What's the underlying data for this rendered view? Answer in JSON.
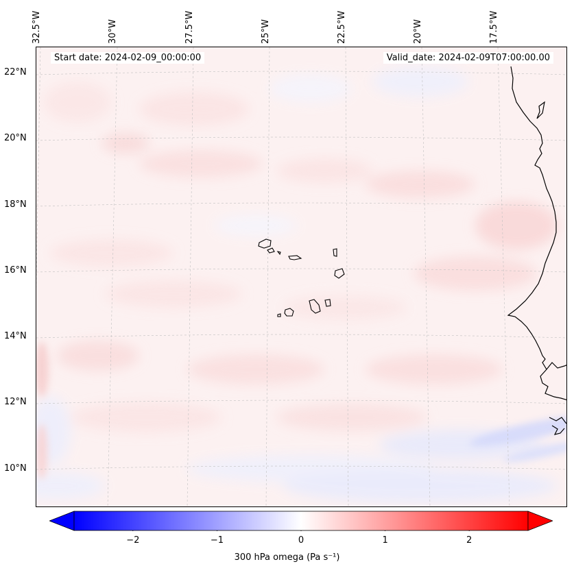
{
  "map": {
    "start_date": "Start date: 2024-02-09_00:00:00",
    "valid_date": "Valid_date: 2024-02-09T07:00:00.00",
    "extent": {
      "lon_min": -32.9,
      "lon_max": -16.0,
      "lat_min": 8.8,
      "lat_max": 22.8
    },
    "lon_ticks": [
      {
        "value": -32.5,
        "label": "32.5°W"
      },
      {
        "value": -30.0,
        "label": "30°W"
      },
      {
        "value": -27.5,
        "label": "27.5°W"
      },
      {
        "value": -25.0,
        "label": "25°W"
      },
      {
        "value": -22.5,
        "label": "22.5°W"
      },
      {
        "value": -20.0,
        "label": "20°W"
      },
      {
        "value": -17.5,
        "label": "17.5°W"
      }
    ],
    "lat_ticks": [
      {
        "value": 22,
        "label": "22°N"
      },
      {
        "value": 20,
        "label": "20°N"
      },
      {
        "value": 18,
        "label": "18°N"
      },
      {
        "value": 16,
        "label": "16°N"
      },
      {
        "value": 14,
        "label": "14°N"
      },
      {
        "value": 12,
        "label": "12°N"
      },
      {
        "value": 10,
        "label": "10°N"
      }
    ],
    "gridlines": true,
    "coastline_color": "#000000",
    "land": "West African coast (east edge)",
    "islands": "Cape Verde islands"
  },
  "colorbar": {
    "min": -2.7,
    "max": 2.7,
    "colormap": "bwr",
    "color_low": "#0000ff",
    "color_mid": "#ffffff",
    "color_high": "#ff0000",
    "extend": "both",
    "ticks": [
      {
        "value": -2,
        "label": "−2"
      },
      {
        "value": -1,
        "label": "−1"
      },
      {
        "value": 0,
        "label": "0"
      },
      {
        "value": 1,
        "label": "1"
      },
      {
        "value": 2,
        "label": "2"
      }
    ],
    "label": "300 hPa omega (Pa s⁻¹)"
  }
}
